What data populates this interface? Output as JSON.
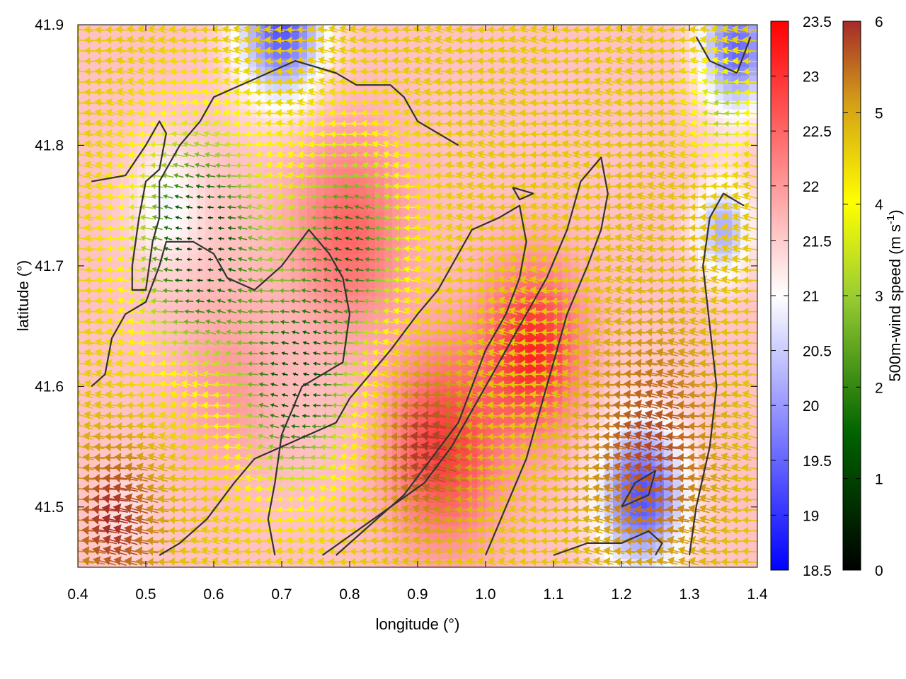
{
  "chart_data": {
    "type": "heatmap",
    "title": "",
    "xlabel": "longitude (°)",
    "ylabel": "latitude (°)",
    "xlim": [
      0.4,
      1.4
    ],
    "ylim": [
      41.45,
      41.9
    ],
    "xticks": [
      "0.4",
      "0.5",
      "0.6",
      "0.7",
      "0.8",
      "0.9",
      "1.0",
      "1.1",
      "1.2",
      "1.3",
      "1.4"
    ],
    "yticks": [
      "41.5",
      "41.6",
      "41.7",
      "41.8",
      "41.9"
    ],
    "temperature_colorbar": {
      "range": [
        18.5,
        23.5
      ],
      "ticks": [
        "18.5",
        "19",
        "19.5",
        "20",
        "20.5",
        "21",
        "21.5",
        "22",
        "22.5",
        "23",
        "23.5"
      ],
      "colors": [
        "#0000ff",
        "#ffffff",
        "#ff0000"
      ]
    },
    "wind_colorbar": {
      "label": "500m-wind speed (m s-1)",
      "range": [
        0,
        6
      ],
      "ticks": [
        "0",
        "1",
        "2",
        "3",
        "4",
        "5",
        "6"
      ],
      "colors": [
        "#000000",
        "#006400",
        "#9acd32",
        "#ffff00",
        "#d4a017",
        "#a52a2a"
      ]
    },
    "temperature_field": {
      "background": 21.6,
      "features": [
        {
          "lon": 0.53,
          "lat": 41.75,
          "value": 20.9,
          "spread": 0.05
        },
        {
          "lon": 0.62,
          "lat": 41.6,
          "value": 22.0,
          "spread": 0.07
        },
        {
          "lon": 0.8,
          "lat": 41.73,
          "value": 22.5,
          "spread": 0.08
        },
        {
          "lon": 0.94,
          "lat": 41.55,
          "value": 22.9,
          "spread": 0.08
        },
        {
          "lon": 1.07,
          "lat": 41.63,
          "value": 23.1,
          "spread": 0.07
        },
        {
          "lon": 1.23,
          "lat": 41.51,
          "value": 19.3,
          "spread": 0.06
        },
        {
          "lon": 0.7,
          "lat": 41.9,
          "value": 19.3,
          "spread": 0.06
        },
        {
          "lon": 1.37,
          "lat": 41.88,
          "value": 19.5,
          "spread": 0.05
        },
        {
          "lon": 1.35,
          "lat": 41.73,
          "value": 20.2,
          "spread": 0.04
        },
        {
          "lon": 0.47,
          "lat": 41.49,
          "value": 21.3,
          "spread": 0.04
        }
      ]
    },
    "wind_speed_field": {
      "background": 4.3,
      "features": [
        {
          "lon": 0.58,
          "lat": 41.72,
          "value": 0.4,
          "spread": 0.09
        },
        {
          "lon": 0.72,
          "lat": 41.6,
          "value": 0.9,
          "spread": 0.08
        },
        {
          "lon": 0.8,
          "lat": 41.72,
          "value": 1.3,
          "spread": 0.08
        },
        {
          "lon": 0.46,
          "lat": 41.49,
          "value": 6.0,
          "spread": 0.06
        },
        {
          "lon": 0.92,
          "lat": 41.55,
          "value": 5.9,
          "spread": 0.06
        },
        {
          "lon": 1.25,
          "lat": 41.55,
          "value": 5.7,
          "spread": 0.09
        },
        {
          "lon": 1.22,
          "lat": 41.74,
          "value": 4.4,
          "spread": 0.07
        },
        {
          "lon": 1.35,
          "lat": 41.83,
          "value": 2.5,
          "spread": 0.04
        }
      ]
    },
    "wind_direction_deg": 180,
    "contours": [
      [
        [
          0.42,
          41.77
        ],
        [
          0.47,
          41.775
        ],
        [
          0.5,
          41.8
        ],
        [
          0.52,
          41.82
        ],
        [
          0.53,
          41.81
        ],
        [
          0.52,
          41.78
        ],
        [
          0.5,
          41.77
        ],
        [
          0.49,
          41.74
        ],
        [
          0.48,
          41.7
        ],
        [
          0.48,
          41.68
        ],
        [
          0.5,
          41.68
        ],
        [
          0.51,
          41.72
        ],
        [
          0.52,
          41.74
        ],
        [
          0.52,
          41.77
        ],
        [
          0.53,
          41.78
        ],
        [
          0.55,
          41.8
        ],
        [
          0.58,
          41.82
        ],
        [
          0.6,
          41.84
        ],
        [
          0.66,
          41.855
        ],
        [
          0.72,
          41.87
        ],
        [
          0.78,
          41.86
        ],
        [
          0.81,
          41.85
        ],
        [
          0.86,
          41.85
        ],
        [
          0.88,
          41.84
        ],
        [
          0.9,
          41.82
        ],
        [
          0.96,
          41.8
        ]
      ],
      [
        [
          0.42,
          41.6
        ],
        [
          0.44,
          41.61
        ],
        [
          0.45,
          41.64
        ],
        [
          0.47,
          41.66
        ],
        [
          0.5,
          41.67
        ],
        [
          0.52,
          41.7
        ],
        [
          0.53,
          41.72
        ],
        [
          0.57,
          41.72
        ],
        [
          0.6,
          41.71
        ],
        [
          0.62,
          41.69
        ],
        [
          0.66,
          41.68
        ],
        [
          0.7,
          41.7
        ],
        [
          0.74,
          41.73
        ],
        [
          0.77,
          41.71
        ],
        [
          0.79,
          41.69
        ],
        [
          0.8,
          41.66
        ],
        [
          0.79,
          41.62
        ],
        [
          0.76,
          41.61
        ],
        [
          0.73,
          41.6
        ],
        [
          0.7,
          41.56
        ],
        [
          0.69,
          41.52
        ],
        [
          0.68,
          41.49
        ],
        [
          0.69,
          41.46
        ]
      ],
      [
        [
          0.52,
          41.46
        ],
        [
          0.55,
          41.47
        ],
        [
          0.59,
          41.49
        ],
        [
          0.63,
          41.52
        ],
        [
          0.66,
          41.54
        ],
        [
          0.7,
          41.55
        ],
        [
          0.74,
          41.56
        ],
        [
          0.78,
          41.57
        ],
        [
          0.8,
          41.59
        ],
        [
          0.83,
          41.61
        ],
        [
          0.86,
          41.63
        ],
        [
          0.9,
          41.66
        ],
        [
          0.93,
          41.68
        ],
        [
          0.96,
          41.71
        ],
        [
          0.98,
          41.73
        ],
        [
          1.02,
          41.74
        ],
        [
          1.05,
          41.75
        ],
        [
          1.06,
          41.72
        ],
        [
          1.05,
          41.69
        ],
        [
          1.03,
          41.66
        ],
        [
          1.0,
          41.63
        ],
        [
          0.98,
          41.6
        ],
        [
          0.96,
          41.57
        ],
        [
          0.92,
          41.54
        ],
        [
          0.88,
          41.51
        ],
        [
          0.84,
          41.49
        ],
        [
          0.78,
          41.46
        ]
      ],
      [
        [
          0.76,
          41.46
        ],
        [
          0.81,
          41.48
        ],
        [
          0.86,
          41.5
        ],
        [
          0.91,
          41.52
        ],
        [
          0.95,
          41.55
        ],
        [
          0.99,
          41.59
        ],
        [
          1.03,
          41.63
        ],
        [
          1.06,
          41.66
        ],
        [
          1.09,
          41.69
        ],
        [
          1.12,
          41.73
        ],
        [
          1.14,
          41.77
        ],
        [
          1.17,
          41.79
        ],
        [
          1.18,
          41.76
        ],
        [
          1.17,
          41.73
        ],
        [
          1.15,
          41.7
        ],
        [
          1.12,
          41.66
        ],
        [
          1.1,
          41.62
        ],
        [
          1.08,
          41.58
        ],
        [
          1.06,
          41.54
        ],
        [
          1.03,
          41.5
        ],
        [
          1.0,
          41.46
        ]
      ],
      [
        [
          1.1,
          41.46
        ],
        [
          1.15,
          41.47
        ],
        [
          1.2,
          41.47
        ],
        [
          1.24,
          41.48
        ],
        [
          1.26,
          41.47
        ],
        [
          1.25,
          41.46
        ]
      ],
      [
        [
          1.3,
          41.46
        ],
        [
          1.31,
          41.5
        ],
        [
          1.33,
          41.55
        ],
        [
          1.34,
          41.6
        ],
        [
          1.33,
          41.65
        ],
        [
          1.32,
          41.7
        ],
        [
          1.33,
          41.74
        ],
        [
          1.35,
          41.76
        ],
        [
          1.38,
          41.75
        ]
      ],
      [
        [
          1.04,
          41.765
        ],
        [
          1.07,
          41.76
        ],
        [
          1.05,
          41.755
        ],
        [
          1.04,
          41.765
        ]
      ],
      [
        [
          1.2,
          41.5
        ],
        [
          1.24,
          41.51
        ],
        [
          1.25,
          41.53
        ],
        [
          1.22,
          41.52
        ],
        [
          1.2,
          41.5
        ]
      ],
      [
        [
          1.31,
          41.89
        ],
        [
          1.33,
          41.87
        ],
        [
          1.37,
          41.86
        ],
        [
          1.39,
          41.89
        ]
      ]
    ]
  }
}
